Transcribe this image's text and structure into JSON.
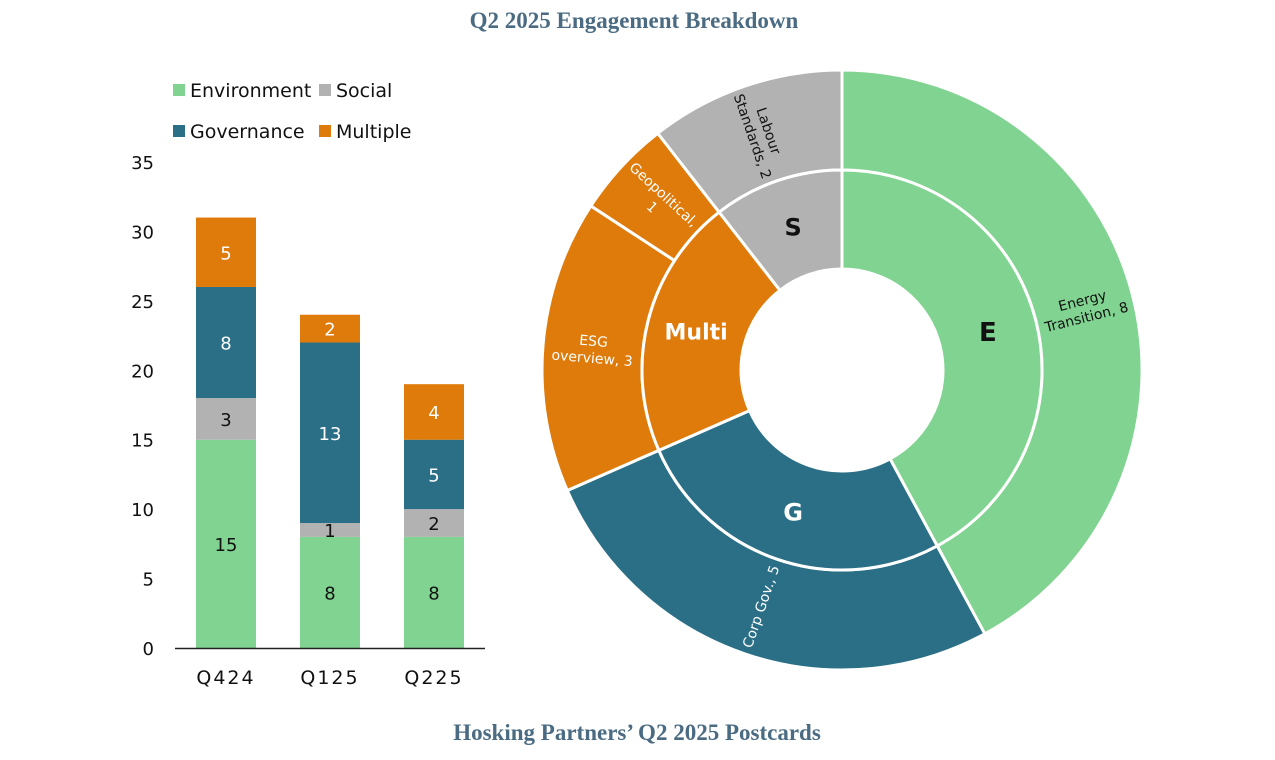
{
  "header": {
    "title": "Q2 2025 Engagement Breakdown"
  },
  "footer": {
    "caption": "Hosking Partners’ Q2 2025 Postcards"
  },
  "colors": {
    "Environment": "#80d390",
    "Social": "#b2b2b2",
    "Governance": "#2a6f86",
    "Multiple": "#df7b0b"
  },
  "chart_data": [
    {
      "type": "bar",
      "stacked": true,
      "categories": [
        "Q424",
        "Q125",
        "Q225"
      ],
      "series": [
        {
          "name": "Environment",
          "values": [
            15,
            8,
            8
          ],
          "labels": [
            "15",
            "8",
            "8"
          ]
        },
        {
          "name": "Social",
          "values": [
            3,
            1,
            2
          ],
          "labels": [
            "3",
            "1",
            "2"
          ]
        },
        {
          "name": "Governance",
          "values": [
            8,
            13,
            5
          ],
          "labels": [
            "8",
            "13",
            "5"
          ]
        },
        {
          "name": "Multiple",
          "values": [
            5,
            2,
            4
          ],
          "labels": [
            "5",
            "2",
            "4"
          ]
        }
      ],
      "yticks": [
        "0",
        "5",
        "10",
        "15",
        "20",
        "25",
        "30",
        "35"
      ],
      "ylim": [
        0,
        35
      ],
      "legend": [
        "Environment",
        "Social",
        "Governance",
        "Multiple"
      ],
      "legend_position": "top-left",
      "grid": false
    },
    {
      "type": "pie",
      "style": "sunburst",
      "inner": [
        {
          "label": "E",
          "value": 8,
          "color": "#80d390"
        },
        {
          "label": "G",
          "value": 5,
          "color": "#2a6f86"
        },
        {
          "label": "Multi",
          "value": 4,
          "color": "#df7b0b"
        },
        {
          "label": "S",
          "value": 2,
          "color": "#b2b2b2"
        }
      ],
      "outer": [
        {
          "label": "Energy Transition, 8",
          "value": 8,
          "parent": "E",
          "lines": [
            "Energy",
            "Transition, 8"
          ]
        },
        {
          "label": "Corp Gov., 5",
          "value": 5,
          "parent": "G",
          "lines": [
            "Corp Gov., 5"
          ]
        },
        {
          "label": "ESG overview, 3",
          "value": 3,
          "parent": "Multi",
          "lines": [
            "ESG",
            "overview, 3"
          ]
        },
        {
          "label": "Geopolitical, 1",
          "value": 1,
          "parent": "Multi",
          "lines": [
            "Geopolitical,",
            "1"
          ]
        },
        {
          "label": "Labour Standards, 2",
          "value": 2,
          "parent": "S",
          "lines": [
            "Labour",
            "Standards, 2"
          ]
        }
      ]
    }
  ]
}
